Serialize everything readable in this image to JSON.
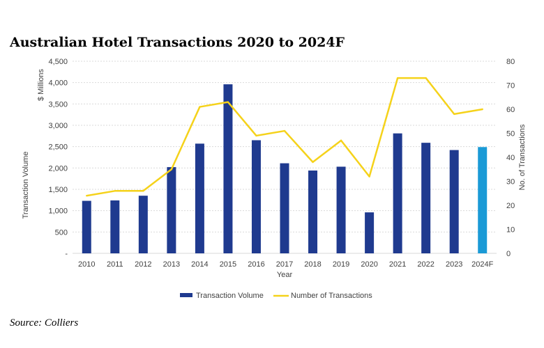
{
  "title": "Australian Hotel Transactions 2020 to 2024F",
  "source": "Source: Colliers",
  "chart_data": {
    "type": "bar",
    "title": "Australian Hotel Transactions 2020 to 2024F",
    "categories": [
      "2010",
      "2011",
      "2012",
      "2013",
      "2014",
      "2015",
      "2016",
      "2017",
      "2018",
      "2019",
      "2020",
      "2021",
      "2022",
      "2023",
      "2024F"
    ],
    "xlabel": "Year",
    "ylabel": "Transaction Volume",
    "ylabel_unit": "$ Millions",
    "y2label": "No. of  Transactions",
    "ylim": [
      0,
      4500
    ],
    "y2lim": [
      0,
      80
    ],
    "yticks": [
      0,
      500,
      1000,
      1500,
      2000,
      2500,
      3000,
      3500,
      4000,
      4500
    ],
    "ytick_labels": [
      "-",
      "500",
      "1,000",
      "1,500",
      "2,000",
      "2,500",
      "3,000",
      "3,500",
      "4,000",
      "4,500"
    ],
    "y2ticks": [
      0,
      10,
      20,
      30,
      40,
      50,
      60,
      70,
      80
    ],
    "y2tick_labels": [
      "0",
      "10",
      "20",
      "30",
      "40",
      "50",
      "60",
      "70",
      "80"
    ],
    "grid": true,
    "legend_position": "bottom-center",
    "series": [
      {
        "name": "Transaction Volume",
        "kind": "bar",
        "axis": "left",
        "color": "#1f3a8f",
        "highlight_color": "#1a9ad6",
        "highlight_index": 14,
        "values": [
          1230,
          1240,
          1350,
          2020,
          2570,
          3960,
          2650,
          2110,
          1940,
          2030,
          960,
          2810,
          2590,
          2420,
          2490
        ]
      },
      {
        "name": "Number of Transactions",
        "kind": "line",
        "axis": "right",
        "color": "#f5d21a",
        "values": [
          24,
          26,
          26,
          35,
          61,
          63,
          49,
          51,
          38,
          47,
          32,
          73,
          73,
          58,
          60
        ]
      }
    ]
  }
}
